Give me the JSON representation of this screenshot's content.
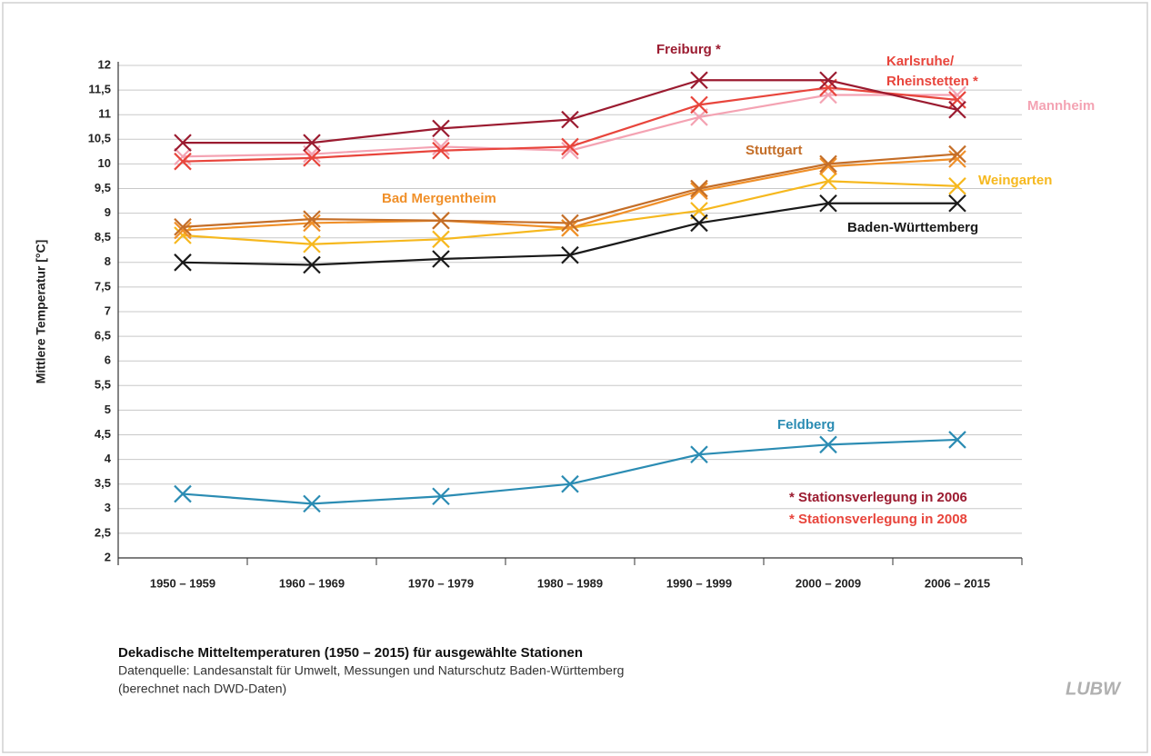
{
  "chart_data": {
    "type": "line",
    "y_label": "Mittlere Temperatur [°C]",
    "categories": [
      "1950 – 1959",
      "1960 – 1969",
      "1970 – 1979",
      "1980 – 1989",
      "1990 – 1999",
      "2000 – 2009",
      "2006 – 2015"
    ],
    "ylim": [
      2,
      12
    ],
    "yticks": [
      2,
      {
        "value": 2.5,
        "label": "2,5"
      },
      3,
      {
        "value": 3.5,
        "label": "3,5"
      },
      4,
      {
        "value": 4.5,
        "label": "4,5"
      },
      5,
      {
        "value": 5.5,
        "label": "5,5"
      },
      6,
      {
        "value": 6.5,
        "label": "6,5"
      },
      7,
      {
        "value": 7.5,
        "label": "7,5"
      },
      8,
      {
        "value": 8.5,
        "label": "8,5"
      },
      9,
      {
        "value": 9.5,
        "label": "9,5"
      },
      10,
      {
        "value": 10.5,
        "label": "10,5"
      },
      11,
      {
        "value": 11.5,
        "label": "11,5"
      },
      12
    ],
    "grid": true,
    "series": [
      {
        "name": "Mannheim",
        "color": "#f4a3b3",
        "values": [
          10.15,
          10.2,
          10.35,
          10.27,
          10.95,
          11.4,
          11.4
        ]
      },
      {
        "name": "Karlsruhe/ Rheinstetten *",
        "color": "#e8453c",
        "values": [
          10.05,
          10.12,
          10.27,
          10.35,
          11.2,
          11.55,
          11.3
        ]
      },
      {
        "name": "Freiburg *",
        "color": "#9b1b30",
        "values": [
          10.43,
          10.43,
          10.72,
          10.9,
          11.7,
          11.7,
          11.1
        ]
      },
      {
        "name": "Weingarten",
        "color": "#f6b81e",
        "values": [
          8.55,
          8.37,
          8.47,
          8.7,
          9.05,
          9.65,
          9.55
        ]
      },
      {
        "name": "Bad Mergentheim",
        "color": "#f0902a",
        "values": [
          8.65,
          8.8,
          8.85,
          8.7,
          9.45,
          9.95,
          10.1
        ]
      },
      {
        "name": "Stuttgart",
        "color": "#c46e28",
        "values": [
          8.72,
          8.88,
          8.85,
          8.8,
          9.5,
          10.0,
          10.2
        ]
      },
      {
        "name": "Baden-Württemberg",
        "color": "#1a1a1a",
        "values": [
          8.0,
          7.95,
          8.07,
          8.15,
          8.8,
          9.2,
          9.2
        ]
      },
      {
        "name": "Feldberg",
        "color": "#2b8cb3",
        "values": [
          3.3,
          3.1,
          3.25,
          3.5,
          4.1,
          4.3,
          4.4
        ]
      }
    ],
    "annotations": [
      {
        "text": "* Stationsverlegung in 2006",
        "color": "#9b1b30"
      },
      {
        "text": "* Stationsverlegung in 2008",
        "color": "#e8453c"
      }
    ],
    "caption_title": "Dekadische Mitteltemperaturen (1950 – 2015) für ausgewählte Stationen",
    "caption_lines": [
      "Datenquelle: Landesanstalt für Umwelt, Messungen und Naturschutz Baden-Württemberg",
      "(berechnet nach DWD-Daten)"
    ],
    "logo": "LUBW"
  }
}
